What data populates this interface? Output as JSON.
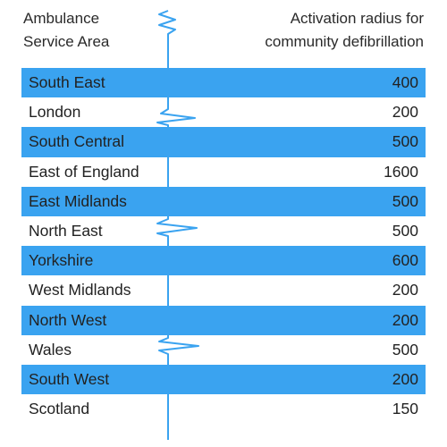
{
  "header": {
    "left": "Ambulance\nService Area",
    "right": "Activation radius for\ncommunity defibrillation"
  },
  "rows": [
    {
      "area": "South East",
      "radius": "400"
    },
    {
      "area": "London",
      "radius": "200"
    },
    {
      "area": "South Central",
      "radius": "500"
    },
    {
      "area": "East of England",
      "radius": "1600"
    },
    {
      "area": "East Midlands",
      "radius": "500"
    },
    {
      "area": "North East",
      "radius": "500"
    },
    {
      "area": "Yorkshire",
      "radius": "600"
    },
    {
      "area": "West Midlands",
      "radius": "200"
    },
    {
      "area": "North West",
      "radius": "200"
    },
    {
      "area": "Wales",
      "radius": "500"
    },
    {
      "area": "South West",
      "radius": "200"
    },
    {
      "area": "Scotland",
      "radius": "150"
    }
  ],
  "colors": {
    "band": "#3aa3f0",
    "axis_line": "#3aa3f0",
    "text": "#222222"
  }
}
